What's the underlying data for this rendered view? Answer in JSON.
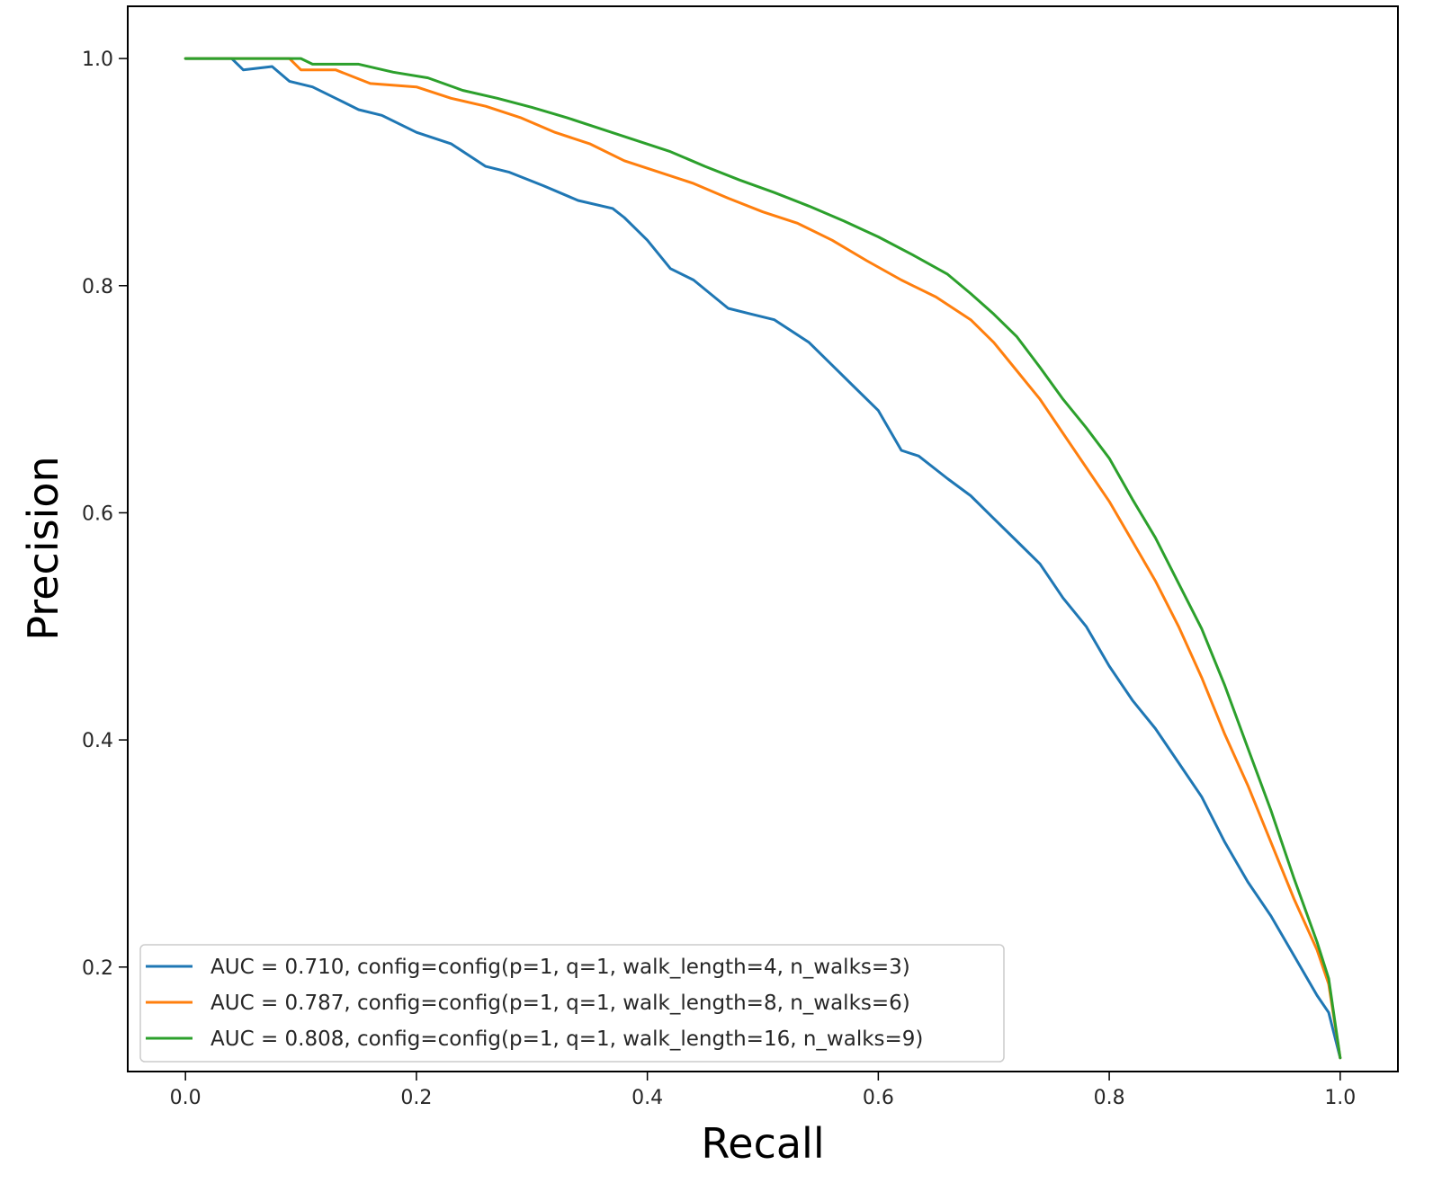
{
  "chart_data": {
    "type": "line",
    "title": "",
    "xlabel": "Recall",
    "ylabel": "Precision",
    "xlim": [
      -0.05,
      1.05
    ],
    "ylim": [
      0.108,
      1.046
    ],
    "xticks": [
      0.0,
      0.2,
      0.4,
      0.6,
      0.8,
      1.0
    ],
    "xtick_labels": [
      "0.0",
      "0.2",
      "0.4",
      "0.6",
      "0.8",
      "1.0"
    ],
    "yticks": [
      0.2,
      0.4,
      0.6,
      0.8,
      1.0
    ],
    "ytick_labels": [
      "0.2",
      "0.4",
      "0.6",
      "0.8",
      "1.0"
    ],
    "grid": false,
    "legend_position": "lower-left",
    "series": [
      {
        "name": "AUC = 0.710, config=config(p=1, q=1, walk_length=4, n_walks=3)",
        "color": "#1f77b4",
        "x": [
          0.0,
          0.02,
          0.04,
          0.05,
          0.075,
          0.09,
          0.11,
          0.13,
          0.15,
          0.17,
          0.2,
          0.23,
          0.26,
          0.28,
          0.31,
          0.34,
          0.37,
          0.38,
          0.4,
          0.42,
          0.44,
          0.47,
          0.49,
          0.51,
          0.54,
          0.56,
          0.58,
          0.6,
          0.62,
          0.635,
          0.66,
          0.68,
          0.7,
          0.72,
          0.74,
          0.76,
          0.78,
          0.8,
          0.82,
          0.84,
          0.86,
          0.88,
          0.9,
          0.92,
          0.94,
          0.96,
          0.98,
          0.99,
          1.0
        ],
        "y": [
          1.0,
          1.0,
          1.0,
          0.99,
          0.993,
          0.98,
          0.975,
          0.965,
          0.955,
          0.95,
          0.935,
          0.925,
          0.905,
          0.9,
          0.888,
          0.875,
          0.868,
          0.86,
          0.84,
          0.815,
          0.805,
          0.78,
          0.775,
          0.77,
          0.75,
          0.73,
          0.71,
          0.69,
          0.655,
          0.65,
          0.63,
          0.615,
          0.595,
          0.575,
          0.555,
          0.525,
          0.5,
          0.465,
          0.435,
          0.41,
          0.38,
          0.35,
          0.31,
          0.275,
          0.245,
          0.21,
          0.175,
          0.16,
          0.12
        ]
      },
      {
        "name": "AUC = 0.787, config=config(p=1, q=1, walk_length=8, n_walks=6)",
        "color": "#ff7f0e",
        "x": [
          0.0,
          0.05,
          0.09,
          0.1,
          0.13,
          0.16,
          0.2,
          0.23,
          0.26,
          0.29,
          0.32,
          0.35,
          0.38,
          0.41,
          0.44,
          0.47,
          0.5,
          0.53,
          0.56,
          0.59,
          0.62,
          0.65,
          0.68,
          0.7,
          0.72,
          0.74,
          0.76,
          0.78,
          0.8,
          0.82,
          0.84,
          0.86,
          0.88,
          0.9,
          0.92,
          0.94,
          0.96,
          0.98,
          0.99,
          1.0
        ],
        "y": [
          1.0,
          1.0,
          1.0,
          0.99,
          0.99,
          0.978,
          0.975,
          0.965,
          0.958,
          0.948,
          0.935,
          0.925,
          0.91,
          0.9,
          0.89,
          0.877,
          0.865,
          0.855,
          0.84,
          0.822,
          0.805,
          0.79,
          0.77,
          0.75,
          0.725,
          0.7,
          0.67,
          0.64,
          0.61,
          0.575,
          0.54,
          0.5,
          0.455,
          0.405,
          0.36,
          0.31,
          0.26,
          0.215,
          0.185,
          0.12
        ]
      },
      {
        "name": "AUC = 0.808, config=config(p=1, q=1, walk_length=16, n_walks=9)",
        "color": "#2ca02c",
        "x": [
          0.0,
          0.05,
          0.1,
          0.11,
          0.15,
          0.18,
          0.21,
          0.24,
          0.27,
          0.3,
          0.33,
          0.36,
          0.39,
          0.42,
          0.45,
          0.48,
          0.51,
          0.54,
          0.57,
          0.6,
          0.63,
          0.66,
          0.68,
          0.7,
          0.72,
          0.74,
          0.76,
          0.78,
          0.8,
          0.82,
          0.84,
          0.86,
          0.88,
          0.9,
          0.92,
          0.94,
          0.96,
          0.98,
          0.99,
          1.0
        ],
        "y": [
          1.0,
          1.0,
          1.0,
          0.995,
          0.995,
          0.988,
          0.983,
          0.972,
          0.965,
          0.957,
          0.948,
          0.938,
          0.928,
          0.918,
          0.905,
          0.893,
          0.882,
          0.87,
          0.857,
          0.843,
          0.827,
          0.81,
          0.793,
          0.775,
          0.755,
          0.728,
          0.7,
          0.675,
          0.648,
          0.612,
          0.578,
          0.538,
          0.498,
          0.448,
          0.393,
          0.338,
          0.278,
          0.222,
          0.19,
          0.12
        ]
      }
    ]
  }
}
